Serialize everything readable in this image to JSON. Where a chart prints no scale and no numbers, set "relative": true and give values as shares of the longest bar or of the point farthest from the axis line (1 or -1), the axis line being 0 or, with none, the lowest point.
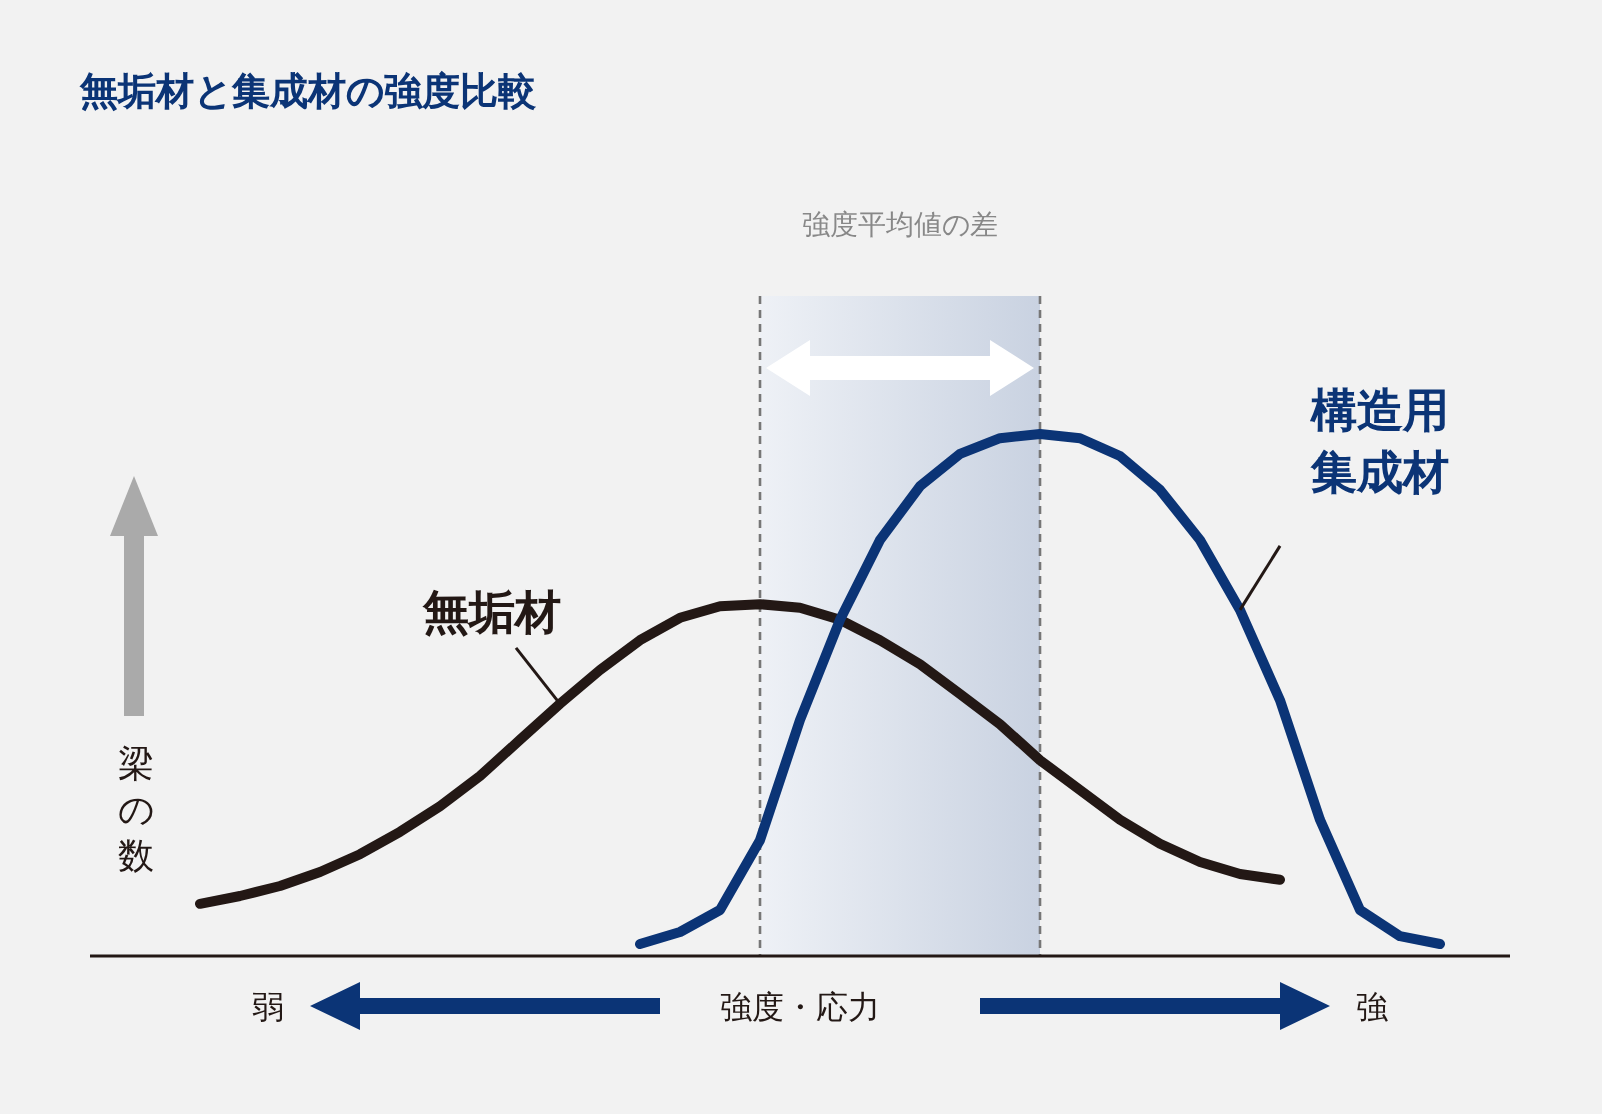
{
  "chart_data": {
    "type": "line",
    "title": "無垢材と集成材の強度比較",
    "xlabel": "強度・応力",
    "ylabel": "梁の数",
    "relative": true,
    "marker": "none",
    "line_style": "solid",
    "categories": [
      null,
      null,
      null,
      null,
      null,
      null,
      null,
      null,
      null,
      null,
      null,
      null,
      null,
      null,
      null,
      null,
      null,
      null,
      null,
      null,
      null,
      null,
      null,
      null,
      null,
      null,
      null,
      null,
      null,
      null,
      null,
      null
    ],
    "series": [
      {
        "name": "無垢材",
        "color": "#231815",
        "values": [
          0.1,
          0.115,
          0.134,
          0.161,
          0.195,
          0.238,
          0.287,
          0.345,
          0.414,
          0.483,
          0.548,
          0.605,
          0.648,
          0.67,
          0.674,
          0.667,
          0.644,
          0.605,
          0.559,
          0.502,
          0.444,
          0.375,
          0.318,
          0.261,
          0.215,
          0.18,
          0.157,
          0.146,
          null,
          null,
          null,
          null
        ]
      },
      {
        "name": "構造用集成材",
        "color": "#0b3476",
        "values": [
          null,
          null,
          null,
          null,
          null,
          null,
          null,
          null,
          null,
          null,
          null,
          0.023,
          0.046,
          0.088,
          0.222,
          0.452,
          0.644,
          0.797,
          0.9,
          0.962,
          0.992,
          1.0,
          0.992,
          0.958,
          0.893,
          0.797,
          0.663,
          0.49,
          0.261,
          0.088,
          0.038,
          0.023
        ]
      }
    ],
    "annotations": [
      "強度平均値の差",
      "弱",
      "強"
    ]
  }
}
